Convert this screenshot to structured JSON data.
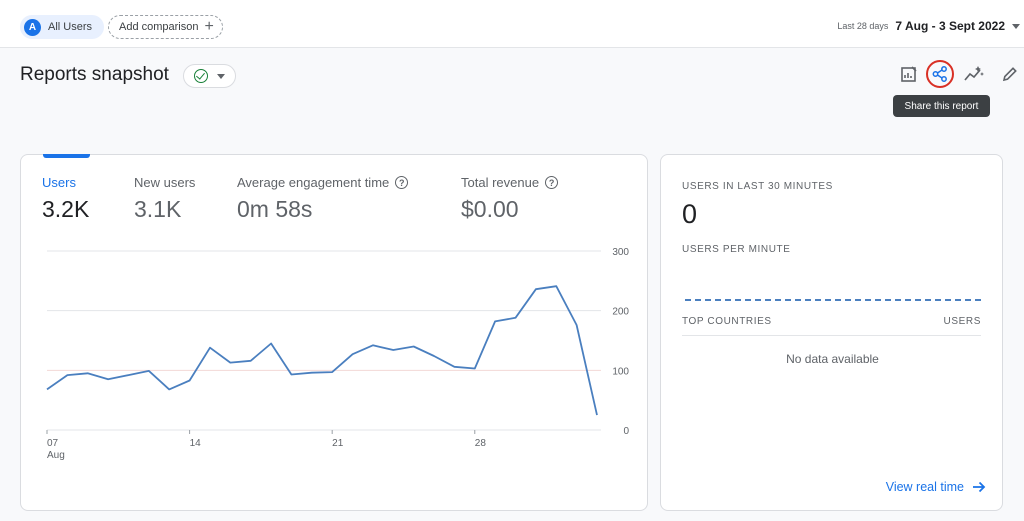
{
  "header": {
    "segment": {
      "avatar_letter": "A",
      "label": "All Users"
    },
    "add_comparison": "Add comparison",
    "date_range": {
      "label": "Last 28 days",
      "value": "7 Aug - 3 Sept 2022"
    }
  },
  "title_row": {
    "title": "Reports snapshot",
    "tooltip": "Share this report",
    "tools": [
      "edit-report-icon",
      "share-icon",
      "insights-icon",
      "pencil-icon"
    ]
  },
  "metrics": [
    {
      "label": "Users",
      "value": "3.2K",
      "active": true,
      "help": false
    },
    {
      "label": "New users",
      "value": "3.1K",
      "active": false,
      "help": false
    },
    {
      "label": "Average engagement time",
      "value": "0m 58s",
      "active": false,
      "help": true
    },
    {
      "label": "Total revenue",
      "value": "$0.00",
      "active": false,
      "help": true
    }
  ],
  "chart_data": {
    "type": "line",
    "x_ticks": [
      {
        "label": "07",
        "sublabel": "Aug",
        "index": 0
      },
      {
        "label": "14",
        "sublabel": "",
        "index": 7
      },
      {
        "label": "21",
        "sublabel": "",
        "index": 14
      },
      {
        "label": "28",
        "sublabel": "",
        "index": 21
      }
    ],
    "y_ticks": [
      "0",
      "100",
      "200",
      "300"
    ],
    "ylim": [
      0,
      300
    ],
    "series": [
      {
        "values": [
          68,
          92,
          95,
          85,
          92,
          99,
          68,
          83,
          138,
          113,
          116,
          145,
          93,
          96,
          97,
          127,
          142,
          134,
          140,
          124,
          106,
          103,
          182,
          188,
          236,
          241,
          176,
          25
        ]
      }
    ],
    "colors": {
      "line": "#4a7fbf",
      "grid": "#e3e5e8",
      "highlight_grid": "#f3d8d6"
    }
  },
  "realtime": {
    "title": "USERS IN LAST 30 MINUTES",
    "value": "0",
    "subtitle": "USERS PER MINUTE",
    "table_head": {
      "left": "TOP COUNTRIES",
      "right": "USERS"
    },
    "empty": "No data available",
    "link": "View real time"
  }
}
